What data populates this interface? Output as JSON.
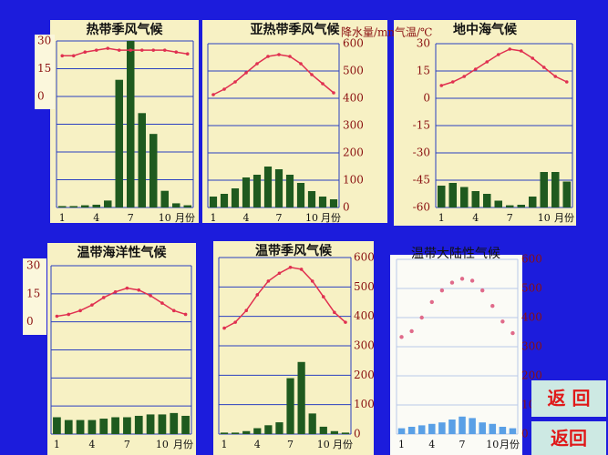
{
  "chart_data": [
    {
      "type": "combo",
      "title": "热带季风气候",
      "categories": [
        "1",
        null,
        null,
        "4",
        null,
        null,
        "7",
        null,
        null,
        "10",
        null,
        null
      ],
      "xlabel": "月份",
      "ylim": [
        -60,
        30
      ],
      "yticks": [
        30,
        15,
        0
      ],
      "y2lim": [
        0,
        600
      ],
      "series": [
        {
          "type": "bar",
          "axis": "y2",
          "color": "#1f5a1f",
          "values": [
            5,
            5,
            8,
            10,
            25,
            460,
            600,
            340,
            265,
            60,
            15,
            8
          ]
        },
        {
          "type": "line",
          "axis": "y",
          "color": "#e03050",
          "values": [
            22,
            22,
            24,
            25,
            26,
            25,
            25,
            25,
            25,
            25,
            24,
            23
          ]
        }
      ]
    },
    {
      "type": "combo",
      "title": "亚热带季风气候",
      "categories": [
        "1",
        null,
        null,
        "4",
        null,
        null,
        "7",
        null,
        null,
        "10",
        null,
        null
      ],
      "xlabel": "月份",
      "y2label": "降水量/mm",
      "ylim": [
        -60,
        30
      ],
      "y2lim": [
        0,
        600
      ],
      "y2ticks": [
        0,
        100,
        200,
        300,
        400,
        500,
        600
      ],
      "series": [
        {
          "type": "bar",
          "axis": "y2",
          "color": "#1f5a1f",
          "values": [
            40,
            50,
            70,
            110,
            120,
            150,
            140,
            120,
            90,
            60,
            40,
            30
          ]
        },
        {
          "type": "line",
          "axis": "y",
          "color": "#e03050",
          "values": [
            2,
            5,
            9,
            14,
            19,
            23,
            24,
            23,
            19,
            13,
            8,
            3
          ]
        }
      ]
    },
    {
      "type": "combo",
      "title": "地中海气候",
      "categories": [
        "1",
        null,
        null,
        "4",
        null,
        null,
        "7",
        null,
        null,
        "10",
        null,
        null
      ],
      "xlabel": "月份",
      "ylabel": "气温/℃",
      "ylim": [
        -60,
        30
      ],
      "yticks": [
        30,
        15,
        0,
        -15,
        -30,
        -45,
        -60
      ],
      "y2lim": [
        0,
        600
      ],
      "series": [
        {
          "type": "bar",
          "axis": "y2",
          "color": "#1f5a1f",
          "values": [
            80,
            90,
            75,
            60,
            50,
            25,
            8,
            10,
            40,
            130,
            130,
            95
          ]
        },
        {
          "type": "line",
          "axis": "y",
          "color": "#e03050",
          "values": [
            7,
            9,
            12,
            16,
            20,
            24,
            27,
            26,
            22,
            17,
            12,
            9
          ]
        }
      ]
    },
    {
      "type": "combo",
      "title": "温带海洋性气候",
      "categories": [
        "1",
        null,
        null,
        "4",
        null,
        null,
        "7",
        null,
        null,
        "10",
        null,
        null
      ],
      "xlabel": "月份",
      "ylim": [
        -60,
        30
      ],
      "yticks": [
        30,
        15,
        0
      ],
      "y2lim": [
        0,
        600
      ],
      "series": [
        {
          "type": "bar",
          "axis": "y2",
          "color": "#1f5a1f",
          "values": [
            60,
            50,
            50,
            50,
            55,
            60,
            60,
            65,
            70,
            70,
            75,
            65
          ]
        },
        {
          "type": "line",
          "axis": "y",
          "color": "#e03050",
          "values": [
            3,
            4,
            6,
            9,
            13,
            16,
            18,
            17,
            14,
            10,
            6,
            4
          ]
        }
      ]
    },
    {
      "type": "combo",
      "title": "温带季风气候",
      "categories": [
        "1",
        null,
        null,
        "4",
        null,
        null,
        "7",
        null,
        null,
        "10",
        null,
        null
      ],
      "xlabel": "月份",
      "ylim": [
        -60,
        30
      ],
      "y2lim": [
        0,
        600
      ],
      "y2ticks": [
        0,
        100,
        200,
        300,
        400,
        500,
        600
      ],
      "series": [
        {
          "type": "bar",
          "axis": "y2",
          "color": "#1f5a1f",
          "values": [
            5,
            5,
            10,
            20,
            30,
            40,
            190,
            245,
            70,
            25,
            10,
            5
          ]
        },
        {
          "type": "line",
          "axis": "y",
          "color": "#e03050",
          "values": [
            -6,
            -3,
            3,
            11,
            18,
            22,
            25,
            24,
            18,
            10,
            2,
            -3
          ]
        }
      ]
    },
    {
      "type": "combo",
      "title": "温带大陆性气候",
      "categories": [
        "1",
        null,
        null,
        "4",
        null,
        null,
        "7",
        null,
        null,
        "10",
        null,
        null
      ],
      "xlabel": "月份",
      "ylim": [
        -60,
        30
      ],
      "y2lim": [
        0,
        600
      ],
      "y2ticks": [
        0,
        100,
        200,
        300,
        400,
        500,
        600
      ],
      "series": [
        {
          "type": "bar",
          "axis": "y2",
          "color": "#5aa0e6",
          "values": [
            20,
            25,
            30,
            35,
            40,
            50,
            60,
            55,
            40,
            35,
            25,
            20
          ]
        },
        {
          "type": "line",
          "axis": "y",
          "color": "#e06a8a",
          "markers_only": true,
          "values": [
            -10,
            -7,
            0,
            8,
            14,
            18,
            20,
            19,
            14,
            6,
            -2,
            -8
          ]
        }
      ]
    }
  ],
  "buttons": [
    "返 回",
    "返回"
  ]
}
